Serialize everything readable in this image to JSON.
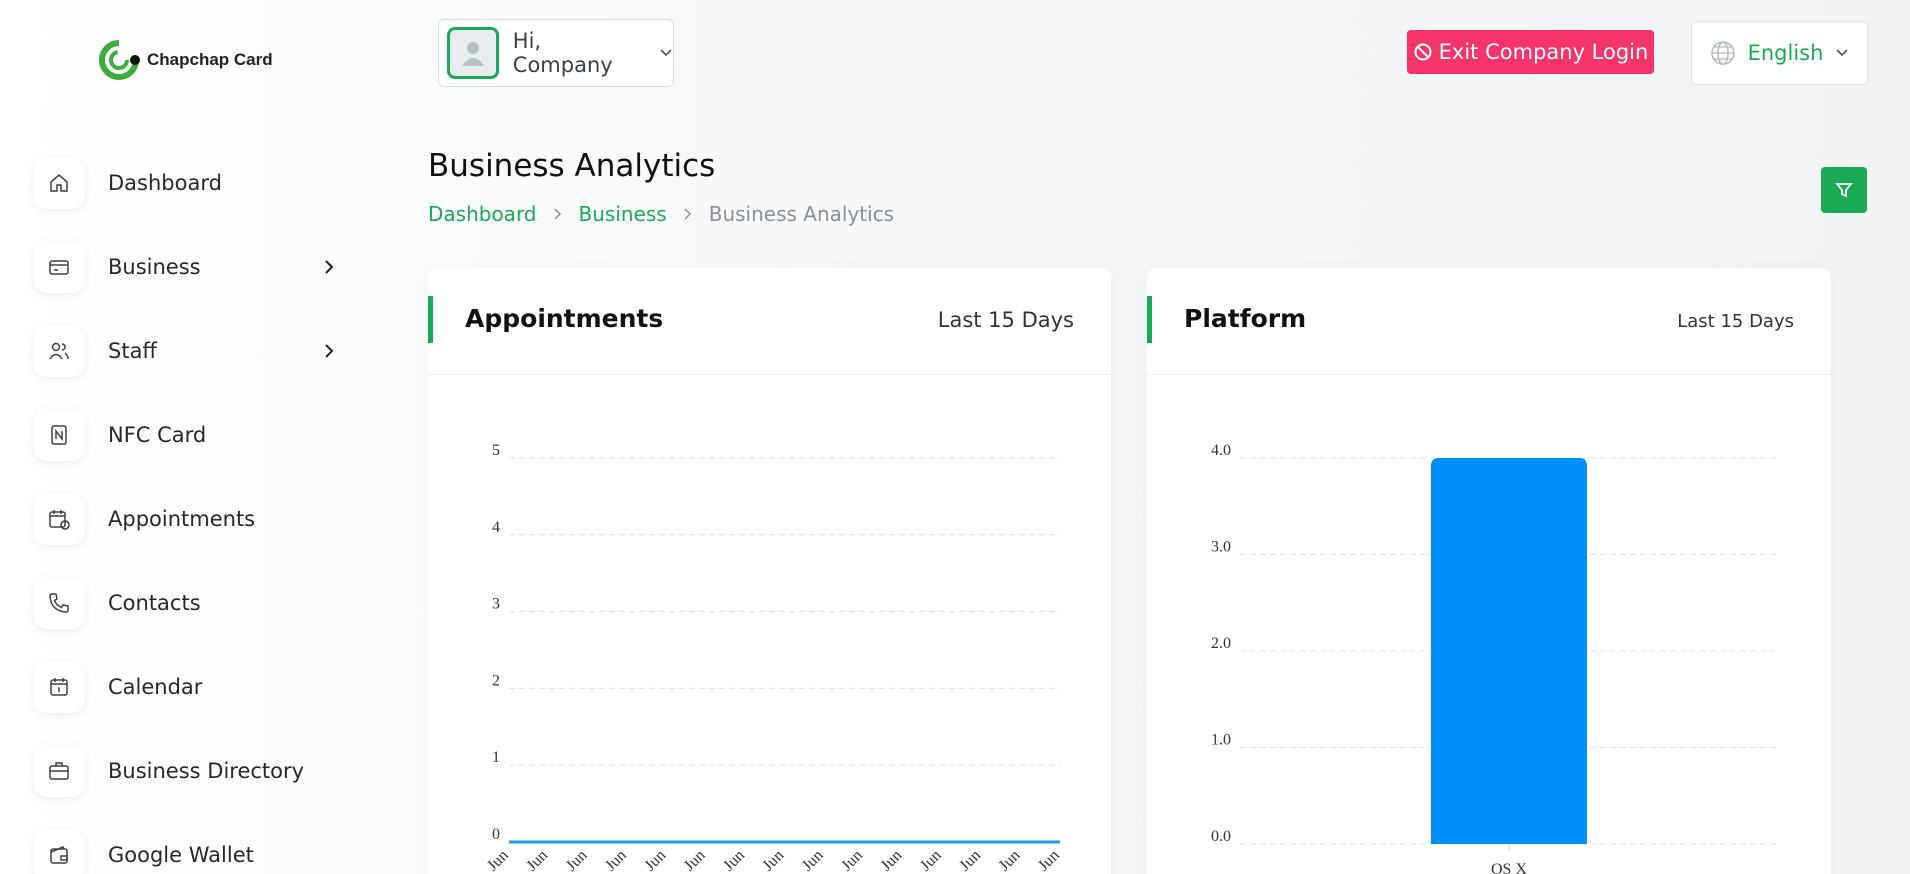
{
  "brand": "Chapchap Card",
  "header": {
    "greeting": "Hi, Company",
    "exit_button": "Exit Company Login",
    "language": "English"
  },
  "sidebar": [
    {
      "label": "Dashboard"
    },
    {
      "label": "Business",
      "submenu": true
    },
    {
      "label": "Staff",
      "submenu": true
    },
    {
      "label": "NFC Card"
    },
    {
      "label": "Appointments"
    },
    {
      "label": "Contacts"
    },
    {
      "label": "Calendar"
    },
    {
      "label": "Business Directory"
    },
    {
      "label": "Google Wallet"
    }
  ],
  "page_title": "Business Analytics",
  "breadcrumb": [
    "Dashboard",
    "Business",
    "Business Analytics"
  ],
  "chart_data": [
    {
      "type": "line",
      "title": "Appointments",
      "subtitle": "Last 15 Days",
      "categories": [
        "Jun",
        "Jun",
        "Jun",
        "Jun",
        "Jun",
        "Jun",
        "Jun",
        "Jun",
        "Jun",
        "Jun",
        "Jun",
        "Jun",
        "Jun",
        "Jun",
        "Jun"
      ],
      "values": [
        0,
        0,
        0,
        0,
        0,
        0,
        0,
        0,
        0,
        0,
        0,
        0,
        0,
        0,
        0
      ],
      "color": "#2196f3",
      "ylim": [
        0,
        5
      ],
      "yticks": [
        0,
        1,
        2,
        3,
        4,
        5
      ],
      "grid": true
    },
    {
      "type": "bar",
      "title": "Platform",
      "subtitle": "Last 15 Days",
      "categories": [
        "OS X"
      ],
      "values": [
        4
      ],
      "color": "#008ffb",
      "ylim": [
        0,
        4
      ],
      "yticks": [
        {
          "value": 0,
          "label": "0.0"
        },
        {
          "value": 1,
          "label": "1.0"
        },
        {
          "value": 2,
          "label": "2.0"
        },
        {
          "value": 3,
          "label": "3.0"
        },
        {
          "value": 4,
          "label": "4.0"
        }
      ],
      "grid": true
    }
  ]
}
